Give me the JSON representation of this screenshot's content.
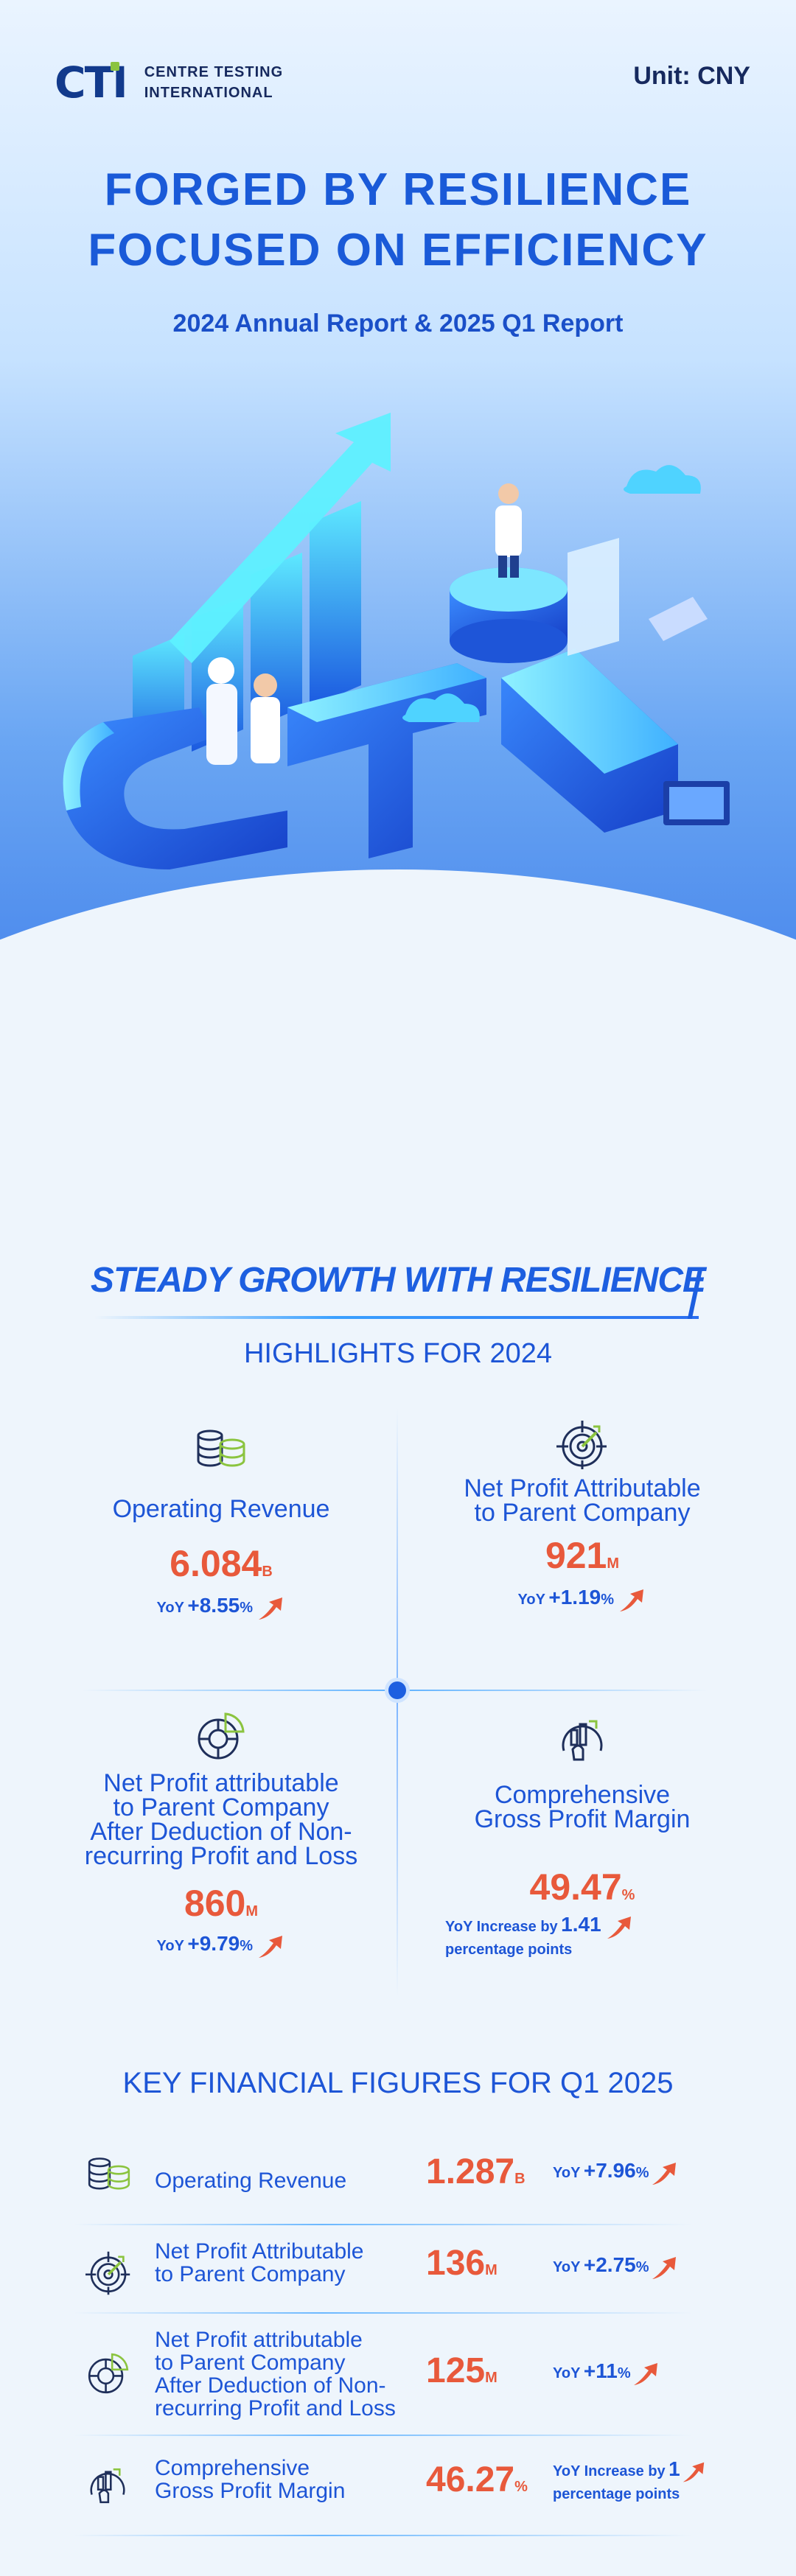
{
  "header": {
    "logo_mark": "CTI",
    "logo_line1": "CENTRE TESTING",
    "logo_line2": "INTERNATIONAL",
    "unit": "Unit: CNY"
  },
  "hero": {
    "title_line1": "FORGED BY RESILIENCE",
    "title_line2": "FOCUSED ON EFFICIENCY",
    "subtitle": "2024 Annual Report & 2025 Q1 Report"
  },
  "highlights": {
    "section_title": "STEADY GROWTH WITH RESILIENCE",
    "section_subtitle": "HIGHLIGHTS FOR 2024",
    "items": [
      {
        "icon": "coins-icon",
        "label_lines": [
          "Operating Revenue"
        ],
        "value": "6.084",
        "unit": "B",
        "yoy_prefix": "YoY",
        "yoy_value": "+8.55",
        "yoy_unit": "%"
      },
      {
        "icon": "target-icon",
        "label_lines": [
          "Net Profit Attributable",
          "to Parent Company"
        ],
        "value": "921",
        "unit": "M",
        "yoy_prefix": "YoY",
        "yoy_value": "+1.19",
        "yoy_unit": "%"
      },
      {
        "icon": "pie-chart-icon",
        "label_lines": [
          "Net Profit attributable",
          "to Parent Company",
          "After Deduction of Non-",
          "recurring Profit and Loss"
        ],
        "value": "860",
        "unit": "M",
        "yoy_prefix": "YoY",
        "yoy_value": "+9.79",
        "yoy_unit": "%"
      },
      {
        "icon": "gauge-hand-icon",
        "label_lines": [
          "Comprehensive",
          "Gross Profit Margin"
        ],
        "value": "49.47",
        "unit": "%",
        "yoy_prefix": "YoY Increase by",
        "yoy_value": "1.41",
        "yoy_unit": "percentage points"
      }
    ]
  },
  "q1": {
    "title": "KEY FINANCIAL FIGURES FOR Q1 2025",
    "rows": [
      {
        "icon": "coins-icon",
        "label_lines": [
          "Operating Revenue"
        ],
        "value": "1.287",
        "unit": "B",
        "yoy_prefix": "YoY",
        "yoy_value": "+7.96",
        "yoy_unit": "%"
      },
      {
        "icon": "target-icon",
        "label_lines": [
          "Net Profit Attributable",
          "to Parent Company"
        ],
        "value": "136",
        "unit": "M",
        "yoy_prefix": "YoY",
        "yoy_value": "+2.75",
        "yoy_unit": "%"
      },
      {
        "icon": "pie-chart-icon",
        "label_lines": [
          "Net Profit attributable",
          "to Parent Company",
          "After Deduction of Non-",
          "recurring Profit and Loss"
        ],
        "value": "125",
        "unit": "M",
        "yoy_prefix": "YoY",
        "yoy_value": "+11",
        "yoy_unit": "%"
      },
      {
        "icon": "gauge-hand-icon",
        "label_lines": [
          "Comprehensive",
          "Gross Profit Margin"
        ],
        "value": "46.27",
        "unit": "%",
        "yoy_prefix": "YoY Increase by",
        "yoy_value": "1",
        "yoy_unit": "percentage points"
      }
    ]
  },
  "colors": {
    "primary": "#1d55d6",
    "accent": "#e8593b",
    "dark": "#16295e",
    "green": "#8bc43f"
  }
}
